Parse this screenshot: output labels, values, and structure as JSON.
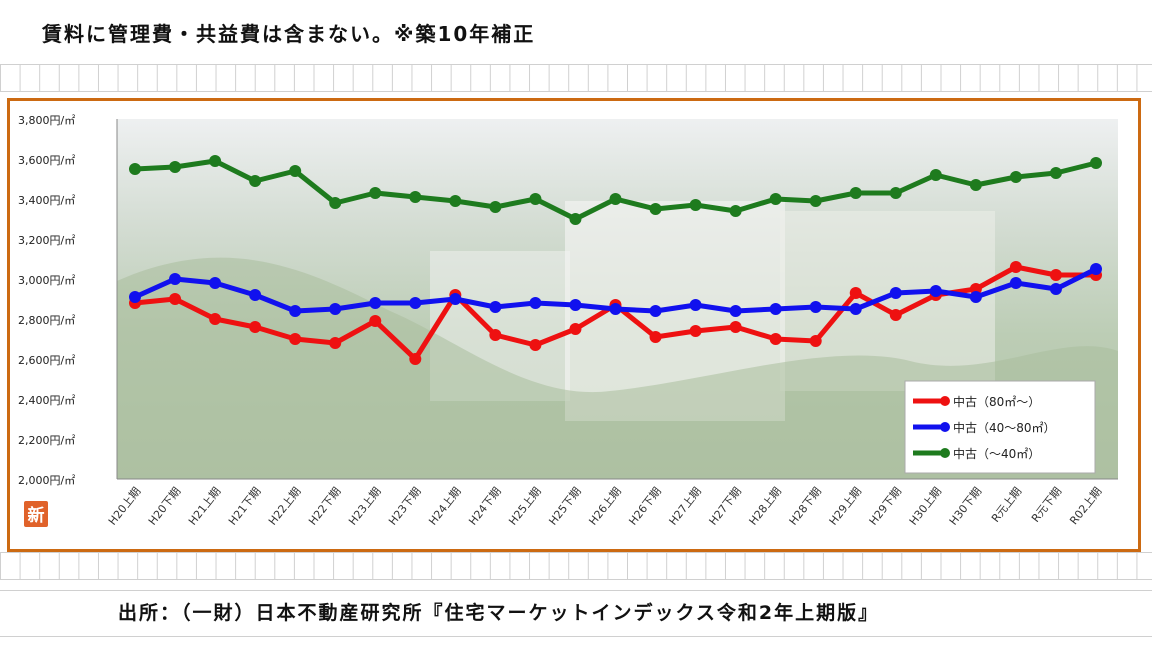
{
  "header": {
    "note": "賃料に管理費・共益費は含まない。※築10年補正"
  },
  "footer": {
    "source": "出所：（一財）日本不動産研究所『住宅マーケットインデックス令和2年上期版』"
  },
  "logo": {
    "text": "新",
    "color": "#e0622a"
  },
  "colors": {
    "frame": "#cc6a12"
  },
  "chart_data": {
    "type": "line",
    "title": "",
    "xlabel": "",
    "ylabel": "",
    "ylim": [
      2000,
      3800
    ],
    "y_ticks": [
      2000,
      2200,
      2400,
      2600,
      2800,
      3000,
      3200,
      3400,
      3600,
      3800
    ],
    "y_tick_labels": [
      "2,000円/㎡",
      "2,200円/㎡",
      "2,400円/㎡",
      "2,600円/㎡",
      "2,800円/㎡",
      "3,000円/㎡",
      "3,200円/㎡",
      "3,400円/㎡",
      "3,600円/㎡",
      "3,800円/㎡"
    ],
    "categories": [
      "H20上期",
      "H20下期",
      "H21上期",
      "H21下期",
      "H22上期",
      "H22下期",
      "H23上期",
      "H23下期",
      "H24上期",
      "H24下期",
      "H25上期",
      "H25下期",
      "H26上期",
      "H26下期",
      "H27上期",
      "H27下期",
      "H28上期",
      "H28下期",
      "H29上期",
      "H29下期",
      "H30上期",
      "H30下期",
      "R元上期",
      "R元下期",
      "R02上期"
    ],
    "legend_position": "bottom-right",
    "series": [
      {
        "name": "中古（80㎡～）",
        "color": "#ee1111",
        "values": [
          2880,
          2900,
          2800,
          2760,
          2700,
          2680,
          2790,
          2600,
          2920,
          2720,
          2670,
          2750,
          2870,
          2710,
          2740,
          2760,
          2700,
          2690,
          2930,
          2820,
          2920,
          2950,
          3060,
          3020,
          3020
        ]
      },
      {
        "name": "中古（40～80㎡）",
        "color": "#1111ee",
        "values": [
          2910,
          3000,
          2980,
          2920,
          2840,
          2850,
          2880,
          2880,
          2900,
          2860,
          2880,
          2870,
          2850,
          2840,
          2870,
          2840,
          2850,
          2860,
          2850,
          2930,
          2940,
          2910,
          2980,
          2950,
          3050
        ]
      },
      {
        "name": "中古（～40㎡）",
        "color": "#1e7b1e",
        "values": [
          3550,
          3560,
          3590,
          3490,
          3540,
          3380,
          3430,
          3410,
          3390,
          3360,
          3400,
          3300,
          3400,
          3350,
          3370,
          3340,
          3400,
          3390,
          3430,
          3430,
          3520,
          3470,
          3510,
          3530,
          3580
        ]
      }
    ]
  }
}
